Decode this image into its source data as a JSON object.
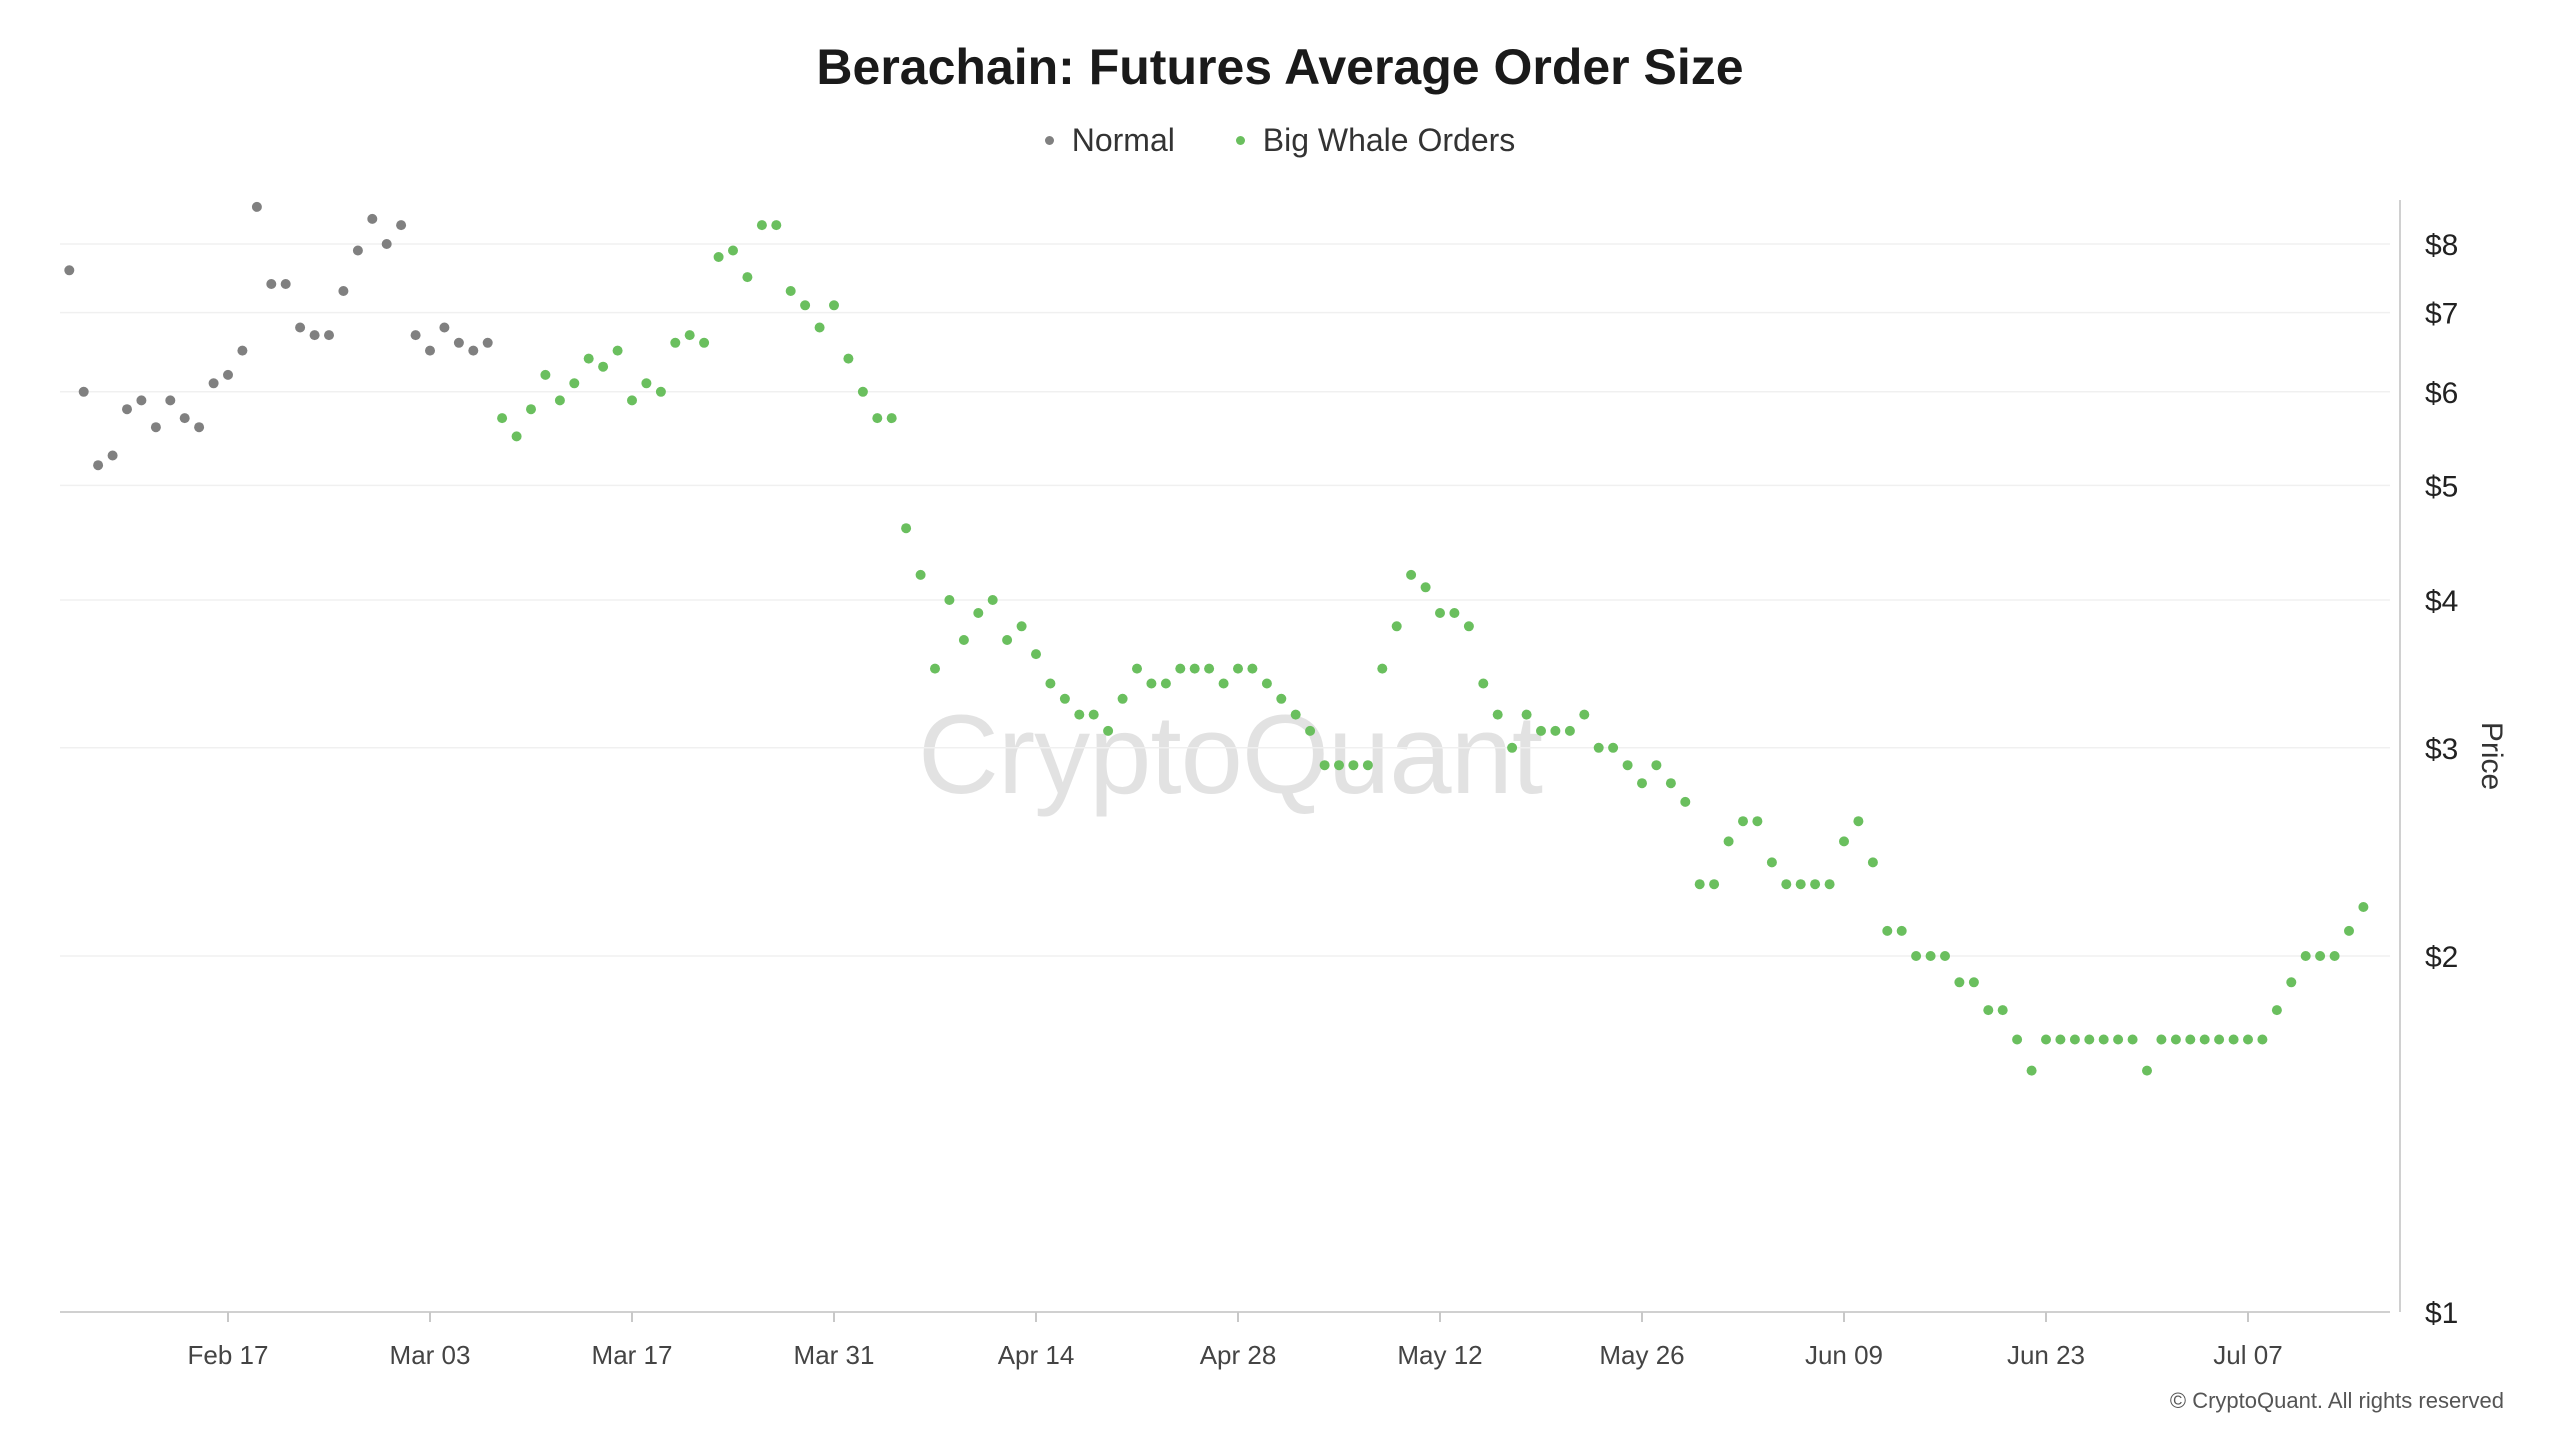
{
  "chart_data": {
    "type": "scatter",
    "title": "Berachain: Futures Average Order Size",
    "ylabel": "Price",
    "y_scale": "log",
    "ylim": [
      1,
      9
    ],
    "y_ticks": [
      {
        "value": 1,
        "label": "$1"
      },
      {
        "value": 2,
        "label": "$2"
      },
      {
        "value": 3,
        "label": "$3"
      },
      {
        "value": 4,
        "label": "$4"
      },
      {
        "value": 5,
        "label": "$5"
      },
      {
        "value": 6,
        "label": "$6"
      },
      {
        "value": 7,
        "label": "$7"
      },
      {
        "value": 8,
        "label": "$8"
      }
    ],
    "xlim": [
      "2025-02-06",
      "2025-07-19"
    ],
    "x_ticks": [
      {
        "date": "2025-02-17",
        "label": "Feb 17"
      },
      {
        "date": "2025-03-03",
        "label": "Mar 03"
      },
      {
        "date": "2025-03-17",
        "label": "Mar 17"
      },
      {
        "date": "2025-03-31",
        "label": "Mar 31"
      },
      {
        "date": "2025-04-14",
        "label": "Apr 14"
      },
      {
        "date": "2025-04-28",
        "label": "Apr 28"
      },
      {
        "date": "2025-05-12",
        "label": "May 12"
      },
      {
        "date": "2025-05-26",
        "label": "May 26"
      },
      {
        "date": "2025-06-09",
        "label": "Jun 09"
      },
      {
        "date": "2025-06-23",
        "label": "Jun 23"
      },
      {
        "date": "2025-07-07",
        "label": "Jul 07"
      }
    ],
    "grid": true,
    "legend_position": "top-center",
    "series": [
      {
        "name": "Normal",
        "color": "#808080",
        "points": [
          [
            "2025-02-06",
            7.6
          ],
          [
            "2025-02-07",
            6.0
          ],
          [
            "2025-02-08",
            5.2
          ],
          [
            "2025-02-09",
            5.3
          ],
          [
            "2025-02-10",
            5.8
          ],
          [
            "2025-02-11",
            5.9
          ],
          [
            "2025-02-12",
            5.6
          ],
          [
            "2025-02-13",
            5.9
          ],
          [
            "2025-02-14",
            5.7
          ],
          [
            "2025-02-15",
            5.6
          ],
          [
            "2025-02-16",
            6.1
          ],
          [
            "2025-02-17",
            6.2
          ],
          [
            "2025-02-18",
            6.5
          ],
          [
            "2025-02-19",
            8.6
          ],
          [
            "2025-02-20",
            7.4
          ],
          [
            "2025-02-21",
            7.4
          ],
          [
            "2025-02-22",
            6.8
          ],
          [
            "2025-02-23",
            6.7
          ],
          [
            "2025-02-24",
            6.7
          ],
          [
            "2025-02-25",
            7.3
          ],
          [
            "2025-02-26",
            7.9
          ],
          [
            "2025-02-27",
            8.4
          ],
          [
            "2025-02-28",
            8.0
          ],
          [
            "2025-03-01",
            8.3
          ],
          [
            "2025-03-02",
            6.7
          ],
          [
            "2025-03-03",
            6.5
          ],
          [
            "2025-03-04",
            6.8
          ],
          [
            "2025-03-05",
            6.6
          ],
          [
            "2025-03-06",
            6.5
          ],
          [
            "2025-03-07",
            6.6
          ]
        ]
      },
      {
        "name": "Big Whale Orders",
        "color": "#6abf5e",
        "points": [
          [
            "2025-03-08",
            5.7
          ],
          [
            "2025-03-09",
            5.5
          ],
          [
            "2025-03-10",
            5.8
          ],
          [
            "2025-03-11",
            6.2
          ],
          [
            "2025-03-12",
            5.9
          ],
          [
            "2025-03-13",
            6.1
          ],
          [
            "2025-03-14",
            6.4
          ],
          [
            "2025-03-15",
            6.3
          ],
          [
            "2025-03-16",
            6.5
          ],
          [
            "2025-03-17",
            5.9
          ],
          [
            "2025-03-18",
            6.1
          ],
          [
            "2025-03-19",
            6.0
          ],
          [
            "2025-03-20",
            6.6
          ],
          [
            "2025-03-21",
            6.7
          ],
          [
            "2025-03-22",
            6.6
          ],
          [
            "2025-03-23",
            7.8
          ],
          [
            "2025-03-24",
            7.9
          ],
          [
            "2025-03-25",
            7.5
          ],
          [
            "2025-03-26",
            8.3
          ],
          [
            "2025-03-27",
            8.3
          ],
          [
            "2025-03-28",
            7.3
          ],
          [
            "2025-03-29",
            7.1
          ],
          [
            "2025-03-30",
            6.8
          ],
          [
            "2025-03-31",
            7.1
          ],
          [
            "2025-04-01",
            6.4
          ],
          [
            "2025-04-02",
            6.0
          ],
          [
            "2025-04-03",
            5.7
          ],
          [
            "2025-04-04",
            5.7
          ],
          [
            "2025-04-05",
            4.6
          ],
          [
            "2025-04-06",
            4.2
          ],
          [
            "2025-04-07",
            3.5
          ],
          [
            "2025-04-08",
            4.0
          ],
          [
            "2025-04-09",
            3.7
          ],
          [
            "2025-04-10",
            3.9
          ],
          [
            "2025-04-11",
            4.0
          ],
          [
            "2025-04-12",
            3.7
          ],
          [
            "2025-04-13",
            3.8
          ],
          [
            "2025-04-14",
            3.6
          ],
          [
            "2025-04-15",
            3.4
          ],
          [
            "2025-04-16",
            3.3
          ],
          [
            "2025-04-17",
            3.2
          ],
          [
            "2025-04-18",
            3.2
          ],
          [
            "2025-04-19",
            3.1
          ],
          [
            "2025-04-20",
            3.3
          ],
          [
            "2025-04-21",
            3.5
          ],
          [
            "2025-04-22",
            3.4
          ],
          [
            "2025-04-23",
            3.4
          ],
          [
            "2025-04-24",
            3.5
          ],
          [
            "2025-04-25",
            3.5
          ],
          [
            "2025-04-26",
            3.5
          ],
          [
            "2025-04-27",
            3.4
          ],
          [
            "2025-04-28",
            3.5
          ],
          [
            "2025-04-29",
            3.5
          ],
          [
            "2025-04-30",
            3.4
          ],
          [
            "2025-05-01",
            3.3
          ],
          [
            "2025-05-02",
            3.2
          ],
          [
            "2025-05-03",
            3.1
          ],
          [
            "2025-05-04",
            2.9
          ],
          [
            "2025-05-05",
            2.9
          ],
          [
            "2025-05-06",
            2.9
          ],
          [
            "2025-05-07",
            2.9
          ],
          [
            "2025-05-08",
            3.5
          ],
          [
            "2025-05-09",
            3.8
          ],
          [
            "2025-05-10",
            4.2
          ],
          [
            "2025-05-11",
            4.1
          ],
          [
            "2025-05-12",
            3.9
          ],
          [
            "2025-05-13",
            3.9
          ],
          [
            "2025-05-14",
            3.8
          ],
          [
            "2025-05-15",
            3.4
          ],
          [
            "2025-05-16",
            3.2
          ],
          [
            "2025-05-17",
            3.0
          ],
          [
            "2025-05-18",
            3.2
          ],
          [
            "2025-05-19",
            3.1
          ],
          [
            "2025-05-20",
            3.1
          ],
          [
            "2025-05-21",
            3.1
          ],
          [
            "2025-05-22",
            3.2
          ],
          [
            "2025-05-23",
            3.0
          ],
          [
            "2025-05-24",
            3.0
          ],
          [
            "2025-05-25",
            2.9
          ],
          [
            "2025-05-26",
            2.8
          ],
          [
            "2025-05-27",
            2.9
          ],
          [
            "2025-05-28",
            2.8
          ],
          [
            "2025-05-29",
            2.7
          ],
          [
            "2025-05-30",
            2.3
          ],
          [
            "2025-05-31",
            2.3
          ],
          [
            "2025-06-01",
            2.5
          ],
          [
            "2025-06-02",
            2.6
          ],
          [
            "2025-06-03",
            2.6
          ],
          [
            "2025-06-04",
            2.4
          ],
          [
            "2025-06-05",
            2.3
          ],
          [
            "2025-06-06",
            2.3
          ],
          [
            "2025-06-07",
            2.3
          ],
          [
            "2025-06-08",
            2.3
          ],
          [
            "2025-06-09",
            2.5
          ],
          [
            "2025-06-10",
            2.6
          ],
          [
            "2025-06-11",
            2.4
          ],
          [
            "2025-06-12",
            2.1
          ],
          [
            "2025-06-13",
            2.1
          ],
          [
            "2025-06-14",
            2.0
          ],
          [
            "2025-06-15",
            2.0
          ],
          [
            "2025-06-16",
            2.0
          ],
          [
            "2025-06-17",
            1.9
          ],
          [
            "2025-06-18",
            1.9
          ],
          [
            "2025-06-19",
            1.8
          ],
          [
            "2025-06-20",
            1.8
          ],
          [
            "2025-06-21",
            1.7
          ],
          [
            "2025-06-22",
            1.6
          ],
          [
            "2025-06-23",
            1.7
          ],
          [
            "2025-06-24",
            1.7
          ],
          [
            "2025-06-25",
            1.7
          ],
          [
            "2025-06-26",
            1.7
          ],
          [
            "2025-06-27",
            1.7
          ],
          [
            "2025-06-28",
            1.7
          ],
          [
            "2025-06-29",
            1.7
          ],
          [
            "2025-06-30",
            1.6
          ],
          [
            "2025-07-01",
            1.7
          ],
          [
            "2025-07-02",
            1.7
          ],
          [
            "2025-07-03",
            1.7
          ],
          [
            "2025-07-04",
            1.7
          ],
          [
            "2025-07-05",
            1.7
          ],
          [
            "2025-07-06",
            1.7
          ],
          [
            "2025-07-07",
            1.7
          ],
          [
            "2025-07-08",
            1.7
          ],
          [
            "2025-07-09",
            1.8
          ],
          [
            "2025-07-10",
            1.9
          ],
          [
            "2025-07-11",
            2.0
          ],
          [
            "2025-07-12",
            2.0
          ],
          [
            "2025-07-13",
            2.0
          ],
          [
            "2025-07-14",
            2.1
          ],
          [
            "2025-07-15",
            2.2
          ]
        ]
      }
    ]
  },
  "watermark": "CryptoQuant",
  "copyright": "© CryptoQuant. All rights reserved"
}
